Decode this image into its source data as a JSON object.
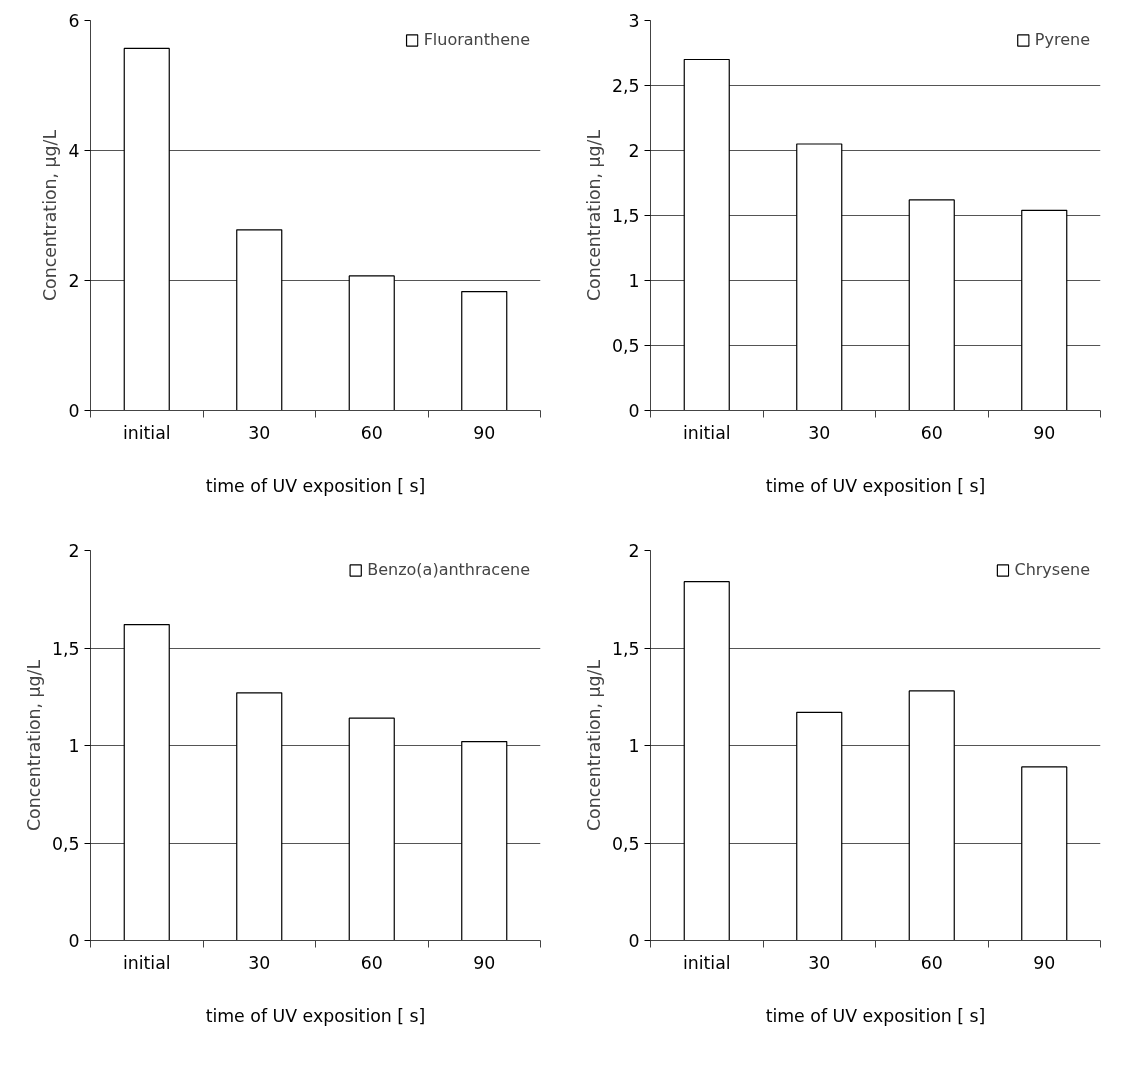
{
  "chart_data": [
    {
      "type": "bar",
      "categories": [
        "initial",
        "30",
        "60",
        "90"
      ],
      "series": [
        {
          "name": "Fluoranthene",
          "color": "#ffffff",
          "values": [
            5.57,
            2.78,
            2.07,
            1.83
          ]
        }
      ],
      "xlabel": "time of UV exposition [ s]",
      "ylabel": "Concentration, µg/L",
      "ylim": [
        0,
        6
      ],
      "yticks": [
        0,
        2,
        4,
        6
      ],
      "grid": "y",
      "legend": "top right"
    },
    {
      "type": "bar",
      "categories": [
        "initial",
        "30",
        "60",
        "90"
      ],
      "series": [
        {
          "name": "Pyrene",
          "color": "#ffffff",
          "values": [
            2.7,
            2.05,
            1.62,
            1.54
          ]
        }
      ],
      "xlabel": "time of UV exposition [ s]",
      "ylabel": "Concentration, µg/L",
      "ylim": [
        0,
        3
      ],
      "yticks": [
        0,
        {
          "value": 0.5,
          "label": "0,5"
        },
        1,
        {
          "value": 1.5,
          "label": "1,5"
        },
        2,
        {
          "value": 2.5,
          "label": "2,5"
        },
        3
      ],
      "grid": "y",
      "legend": "top right"
    },
    {
      "type": "bar",
      "categories": [
        "initial",
        "30",
        "60",
        "90"
      ],
      "series": [
        {
          "name": "Benzo(a)anthracene",
          "color": "#ffffff",
          "values": [
            1.62,
            1.27,
            1.14,
            1.02
          ]
        }
      ],
      "xlabel": "time of UV exposition [ s]",
      "ylabel": "Concentration, µg/L",
      "ylim": [
        0,
        2
      ],
      "yticks": [
        0,
        {
          "value": 0.5,
          "label": "0,5"
        },
        1,
        {
          "value": 1.5,
          "label": "1,5"
        },
        2
      ],
      "grid": "y",
      "legend": "top right"
    },
    {
      "type": "bar",
      "categories": [
        "initial",
        "30",
        "60",
        "90"
      ],
      "series": [
        {
          "name": "Chrysene",
          "color": "#ffffff",
          "values": [
            1.84,
            1.17,
            1.28,
            0.89
          ]
        }
      ],
      "xlabel": "time of UV exposition [ s]",
      "ylabel": "Concentration, µg/L",
      "ylim": [
        0,
        2
      ],
      "yticks": [
        0,
        {
          "value": 0.5,
          "label": "0,5"
        },
        1,
        {
          "value": 1.5,
          "label": "1,5"
        },
        2
      ],
      "grid": "y",
      "legend": "top right"
    }
  ]
}
